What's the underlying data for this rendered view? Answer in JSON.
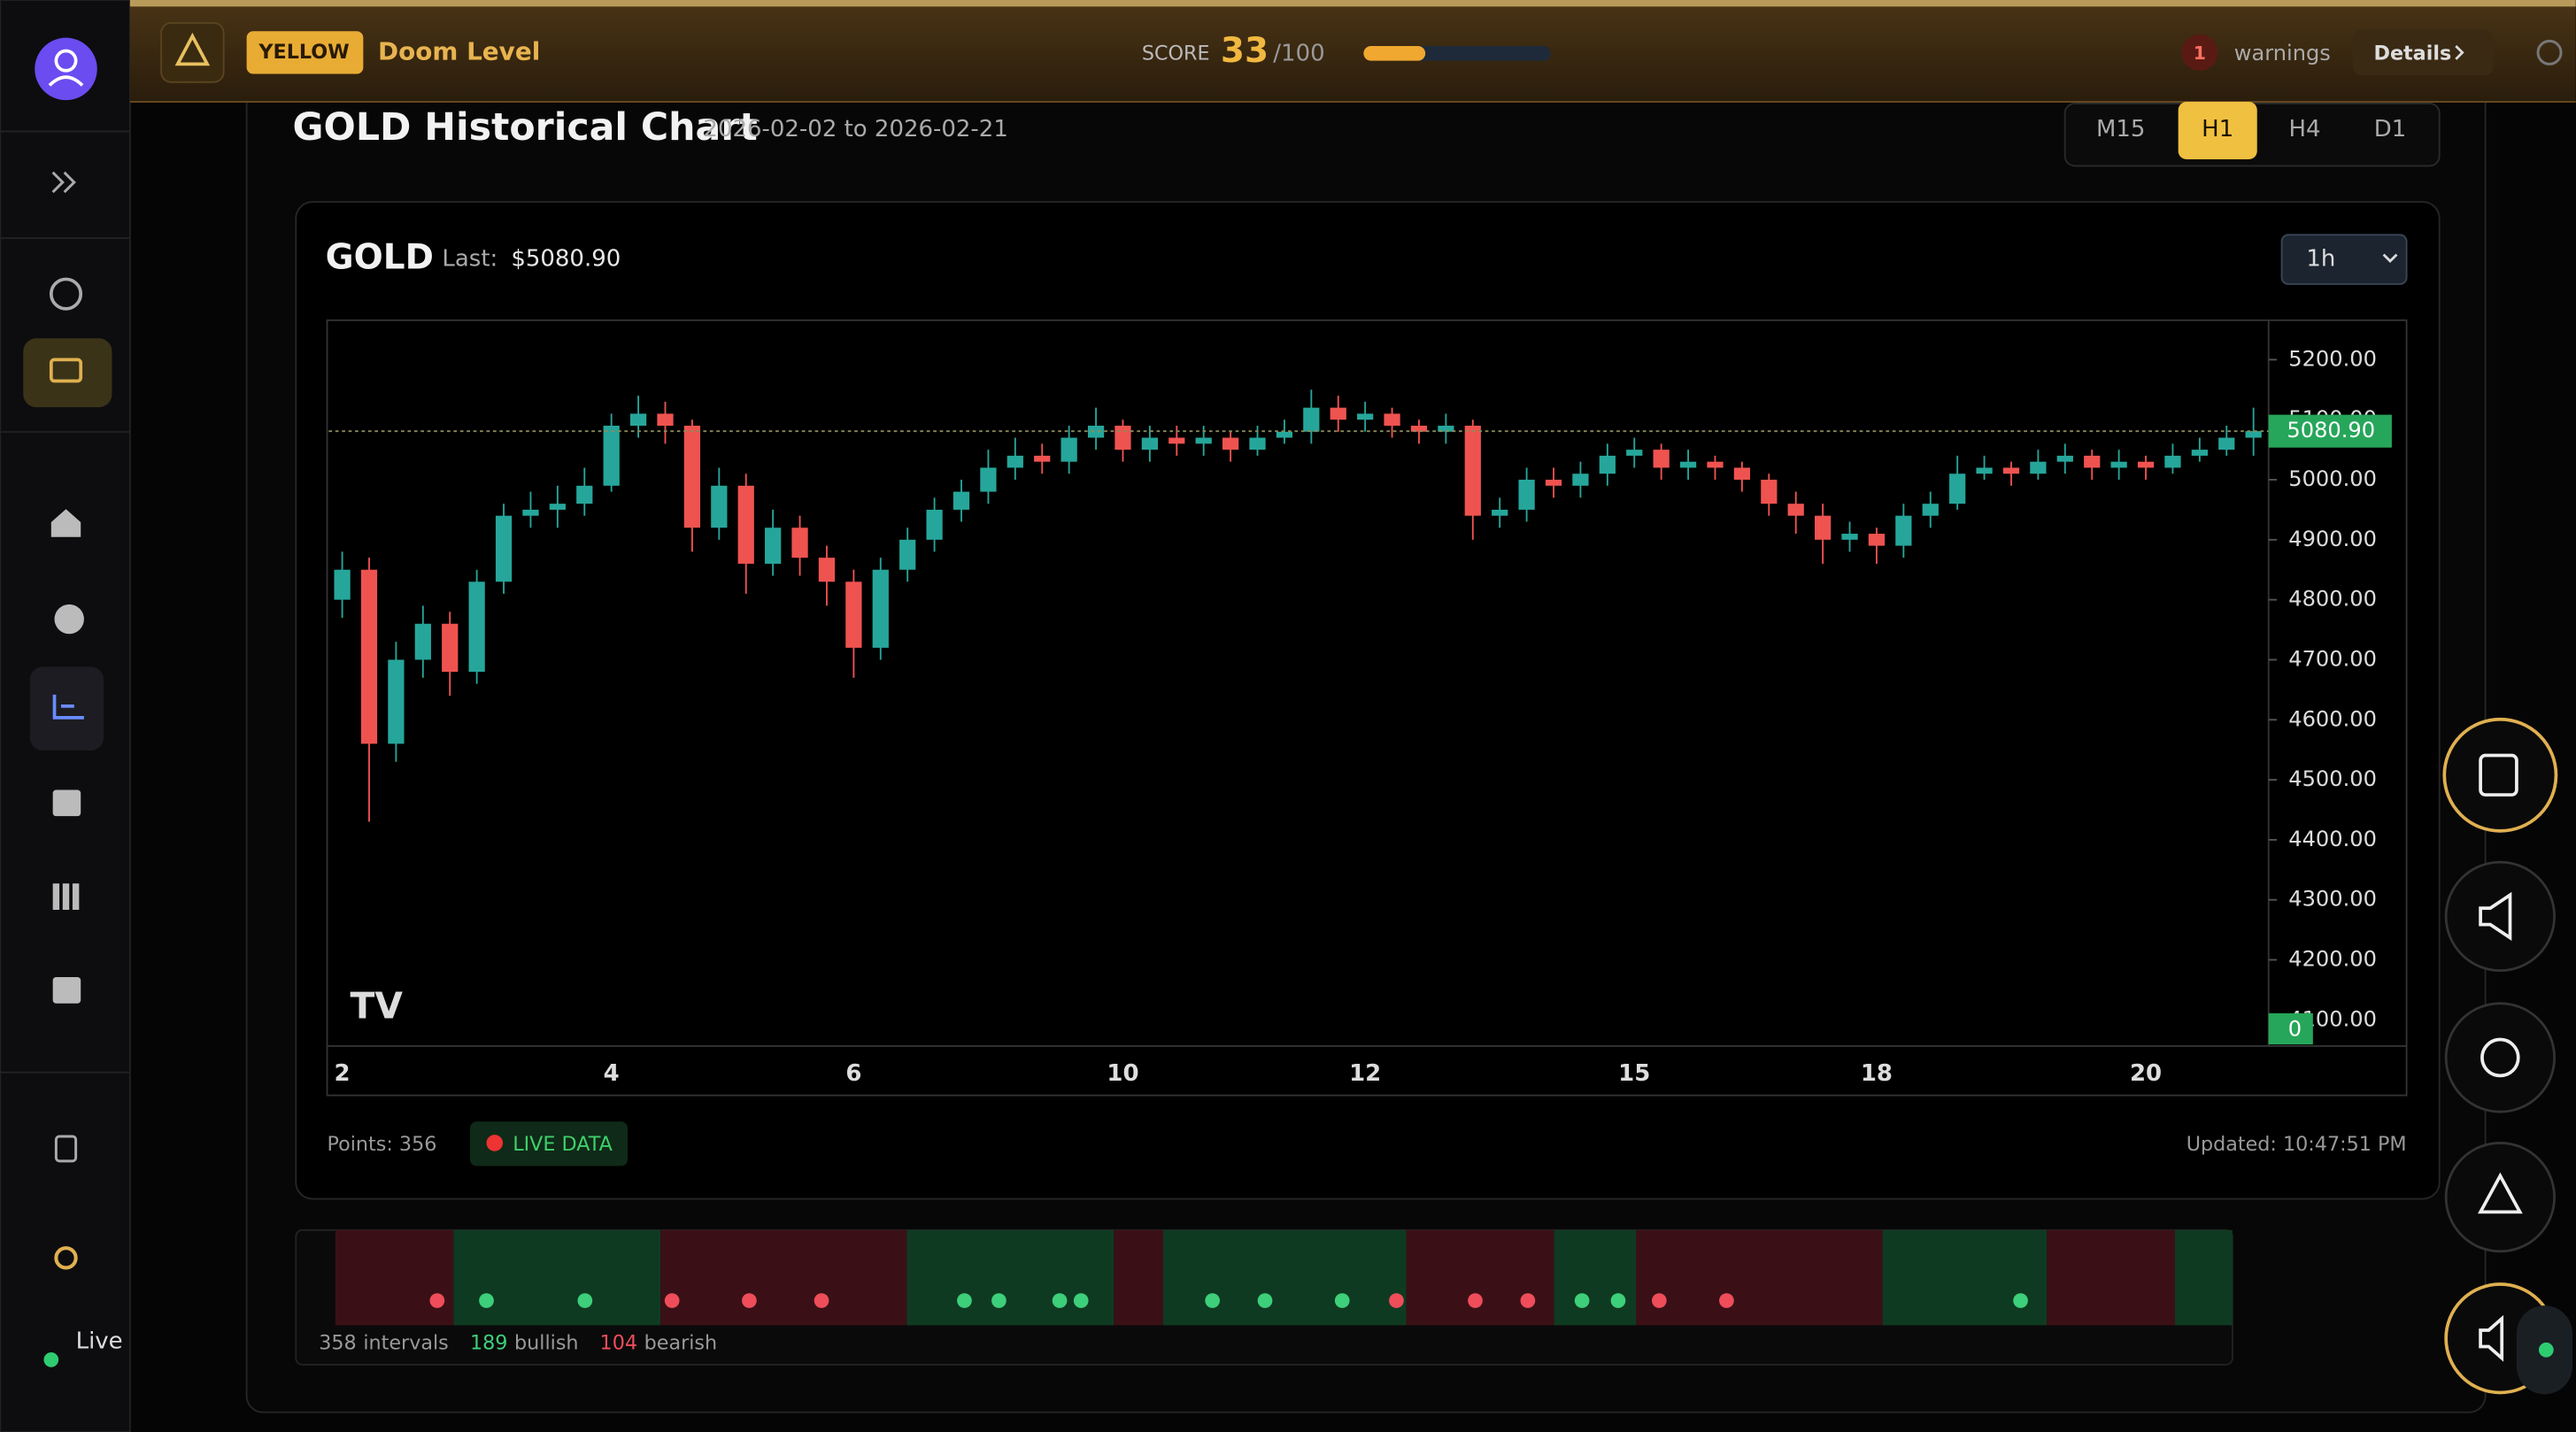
{
  "header": {
    "level": "YELLOW",
    "title": "Doom Level",
    "score_label": "SCORE",
    "score": 33,
    "score_max": {
      "value": 100,
      "label": "/100"
    },
    "warnings_count": 1,
    "warnings_label": "warnings",
    "details": "Details"
  },
  "sidebar": {
    "status": "Live"
  },
  "page": {
    "title": "GOLD Historical Chart",
    "range": "2026-02-02 to 2026-02-21",
    "timeframes": [
      "M15",
      "H1",
      "H4",
      "D1"
    ],
    "active_timeframe": "H1"
  },
  "card": {
    "symbol": "GOLD",
    "last_label": "Last:",
    "last": "$5080.90",
    "interval": "1h",
    "points": "Points: 356",
    "live": "LIVE DATA",
    "updated": "Updated: 10:47:51 PM"
  },
  "chart_data": {
    "type": "candlestick",
    "up_color": "#26a69a",
    "down_color": "#ef5350",
    "categories": [
      "2",
      null,
      null,
      null,
      null,
      null,
      null,
      null,
      null,
      null,
      "4",
      null,
      null,
      null,
      null,
      null,
      null,
      null,
      null,
      "6",
      null,
      null,
      null,
      null,
      null,
      null,
      null,
      null,
      null,
      "10",
      null,
      null,
      null,
      null,
      null,
      null,
      null,
      null,
      "12",
      null,
      null,
      null,
      null,
      null,
      null,
      null,
      null,
      null,
      "15",
      null,
      null,
      null,
      null,
      null,
      null,
      null,
      null,
      "18",
      null,
      null,
      null,
      null,
      null,
      null,
      null,
      null,
      null,
      "20",
      null,
      null,
      null,
      null
    ],
    "open": [
      4800,
      4850,
      4560,
      4700,
      4760,
      4680,
      4830,
      4940,
      4950,
      4960,
      4990,
      5090,
      5110,
      5090,
      4920,
      4990,
      4860,
      4920,
      4870,
      4830,
      4720,
      4850,
      4900,
      4950,
      4980,
      5020,
      5040,
      5030,
      5070,
      5090,
      5050,
      5070,
      5060,
      5070,
      5050,
      5070,
      5080,
      5120,
      5100,
      5110,
      5090,
      5080,
      5090,
      4940,
      4950,
      5000,
      4990,
      5010,
      5040,
      5050,
      5020,
      5030,
      5020,
      5000,
      4960,
      4940,
      4900,
      4910,
      4890,
      4940,
      4960,
      5010,
      5020,
      5010,
      5030,
      5040,
      5020,
      5030,
      5020,
      5040,
      5050,
      5070
    ],
    "high": [
      4880,
      4870,
      4730,
      4790,
      4780,
      4850,
      4960,
      4980,
      4990,
      5020,
      5110,
      5140,
      5130,
      5100,
      5020,
      5010,
      4950,
      4940,
      4890,
      4850,
      4870,
      4920,
      4970,
      5000,
      5050,
      5070,
      5060,
      5090,
      5120,
      5100,
      5090,
      5090,
      5090,
      5080,
      5090,
      5100,
      5150,
      5140,
      5130,
      5120,
      5100,
      5110,
      5100,
      4970,
      5020,
      5020,
      5030,
      5060,
      5070,
      5060,
      5050,
      5040,
      5030,
      5010,
      4980,
      4960,
      4930,
      4920,
      4960,
      4980,
      5040,
      5040,
      5030,
      5050,
      5060,
      5050,
      5050,
      5040,
      5060,
      5070,
      5090,
      5120
    ],
    "low": [
      4770,
      4430,
      4530,
      4670,
      4640,
      4660,
      4810,
      4920,
      4920,
      4940,
      4980,
      5070,
      5060,
      4880,
      4900,
      4810,
      4840,
      4840,
      4790,
      4670,
      4700,
      4830,
      4880,
      4930,
      4960,
      5000,
      5010,
      5010,
      5050,
      5030,
      5030,
      5040,
      5040,
      5030,
      5040,
      5060,
      5060,
      5080,
      5080,
      5070,
      5060,
      5060,
      4900,
      4920,
      4930,
      4970,
      4970,
      4990,
      5020,
      5000,
      5000,
      5000,
      4980,
      4940,
      4910,
      4860,
      4880,
      4860,
      4870,
      4920,
      4950,
      5000,
      4990,
      5000,
      5010,
      5000,
      5000,
      5000,
      5010,
      5030,
      5040,
      5040
    ],
    "close": [
      4850,
      4560,
      4700,
      4760,
      4680,
      4830,
      4940,
      4950,
      4960,
      4990,
      5090,
      5110,
      5090,
      4920,
      4990,
      4860,
      4920,
      4870,
      4830,
      4720,
      4850,
      4900,
      4950,
      4980,
      5020,
      5040,
      5030,
      5070,
      5090,
      5050,
      5070,
      5060,
      5070,
      5050,
      5070,
      5080,
      5120,
      5100,
      5110,
      5090,
      5080,
      5090,
      4940,
      4950,
      5000,
      4990,
      5010,
      5040,
      5050,
      5020,
      5030,
      5020,
      5000,
      4960,
      4940,
      4900,
      4910,
      4890,
      4940,
      4960,
      5010,
      5020,
      5010,
      5030,
      5040,
      5020,
      5030,
      5020,
      5040,
      5050,
      5070,
      5081
    ],
    "ylim": [
      4059,
      5263
    ],
    "yticks": [
      {
        "value": 4100,
        "label": "4100.00"
      },
      {
        "value": 4200,
        "label": "4200.00"
      },
      {
        "value": 4300,
        "label": "4300.00"
      },
      {
        "value": 4400,
        "label": "4400.00"
      },
      {
        "value": 4500,
        "label": "4500.00"
      },
      {
        "value": 4600,
        "label": "4600.00"
      },
      {
        "value": 4700,
        "label": "4700.00"
      },
      {
        "value": 4800,
        "label": "4800.00"
      },
      {
        "value": 4900,
        "label": "4900.00"
      },
      {
        "value": 5000,
        "label": "5000.00"
      },
      {
        "value": 5100,
        "label": "5100.00"
      },
      {
        "value": 5200,
        "label": "5200.00"
      }
    ],
    "last_price": {
      "value": 5080.9,
      "label": "5080.90"
    },
    "volume_zero": "0"
  },
  "intervals": {
    "count": 358,
    "count_label": "intervals",
    "bullish": 189,
    "bullish_label": "bullish",
    "bearish": 104,
    "bearish_label": "bearish"
  }
}
